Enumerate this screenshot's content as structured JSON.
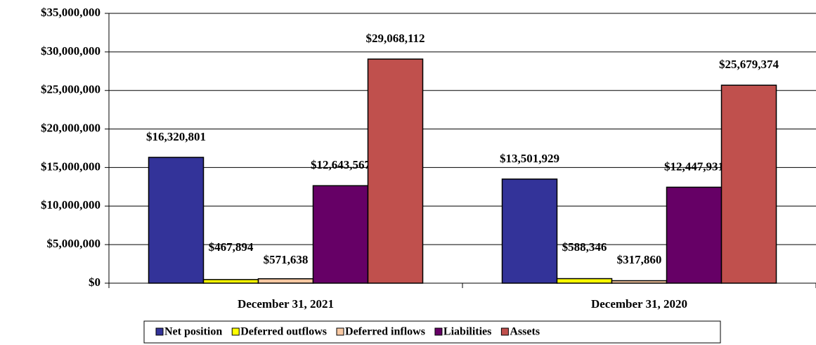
{
  "chart_data": {
    "type": "bar",
    "categories": [
      "December 31, 2021",
      "December 31, 2020"
    ],
    "series": [
      {
        "name": "Net position",
        "color": "#333399",
        "values": [
          16320801,
          13501929
        ],
        "value_labels": [
          "$16,320,801",
          "$13,501,929"
        ]
      },
      {
        "name": "Deferred outflows",
        "color": "#ffff00",
        "values": [
          467894,
          588346
        ],
        "value_labels": [
          "$467,894",
          "$588,346"
        ]
      },
      {
        "name": "Deferred inflows",
        "color": "#f9c9a3",
        "values": [
          571638,
          317860
        ],
        "value_labels": [
          "$571,638",
          "$317,860"
        ]
      },
      {
        "name": "Liabilities",
        "color": "#660066",
        "values": [
          12643567,
          12447931
        ],
        "value_labels": [
          "$12,643,567",
          "$12,447,931"
        ]
      },
      {
        "name": "Assets",
        "color": "#c0504d",
        "values": [
          29068112,
          25679374
        ],
        "value_labels": [
          "$29,068,112",
          "$25,679,374"
        ]
      }
    ],
    "ylim": [
      0,
      35000000
    ],
    "yticks": [
      {
        "value": 0,
        "label": "$0"
      },
      {
        "value": 5000000,
        "label": "$5,000,000"
      },
      {
        "value": 10000000,
        "label": "$10,000,000"
      },
      {
        "value": 15000000,
        "label": "$15,000,000"
      },
      {
        "value": 20000000,
        "label": "$20,000,000"
      },
      {
        "value": 25000000,
        "label": "$25,000,000"
      },
      {
        "value": 30000000,
        "label": "$30,000,000"
      },
      {
        "value": 35000000,
        "label": "$35,000,000"
      }
    ],
    "grid": true,
    "legend": "bottom"
  }
}
